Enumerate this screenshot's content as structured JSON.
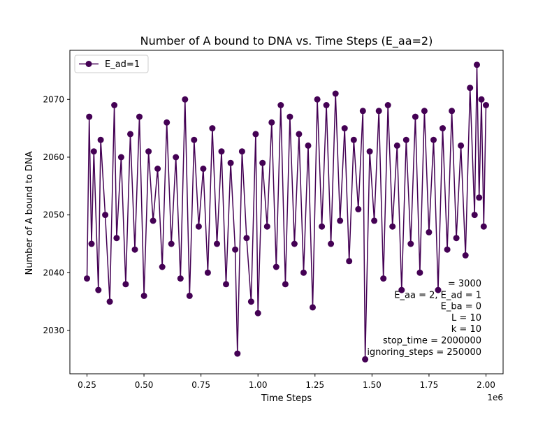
{
  "chart_data": {
    "type": "line",
    "title": "Number of A bound to DNA vs. Time Steps (E_aa=2)",
    "xlabel": "Time Steps",
    "ylabel": "Number of A bound to DNA",
    "x_offset_label": "1e6",
    "xlim": [
      0.175,
      2.075
    ],
    "ylim": [
      2022.5,
      2078.5
    ],
    "x_ticks": [
      0.25,
      0.5,
      0.75,
      1.0,
      1.25,
      1.5,
      1.75,
      2.0
    ],
    "x_tick_labels": [
      "0.25",
      "0.50",
      "0.75",
      "1.00",
      "1.25",
      "1.50",
      "1.75",
      "2.00"
    ],
    "y_ticks": [
      2030,
      2040,
      2050,
      2060,
      2070
    ],
    "y_tick_labels": [
      "2030",
      "2040",
      "2050",
      "2060",
      "2070"
    ],
    "grid": false,
    "legend_position": "top-left",
    "series": [
      {
        "name": "E_ad=1",
        "color": "#440154",
        "marker": "circle",
        "x": [
          0.25,
          0.26,
          0.27,
          0.28,
          0.3,
          0.31,
          0.33,
          0.35,
          0.37,
          0.38,
          0.4,
          0.42,
          0.44,
          0.46,
          0.48,
          0.5,
          0.52,
          0.54,
          0.56,
          0.58,
          0.6,
          0.62,
          0.64,
          0.66,
          0.68,
          0.7,
          0.72,
          0.74,
          0.76,
          0.78,
          0.8,
          0.82,
          0.84,
          0.86,
          0.88,
          0.9,
          0.91,
          0.93,
          0.95,
          0.97,
          0.99,
          1.0,
          1.02,
          1.04,
          1.06,
          1.08,
          1.1,
          1.12,
          1.14,
          1.16,
          1.18,
          1.2,
          1.22,
          1.24,
          1.26,
          1.28,
          1.3,
          1.32,
          1.34,
          1.36,
          1.38,
          1.4,
          1.42,
          1.44,
          1.46,
          1.47,
          1.49,
          1.51,
          1.53,
          1.55,
          1.57,
          1.59,
          1.61,
          1.63,
          1.65,
          1.67,
          1.69,
          1.71,
          1.73,
          1.75,
          1.77,
          1.79,
          1.81,
          1.83,
          1.85,
          1.87,
          1.89,
          1.91,
          1.93,
          1.95,
          1.96,
          1.97,
          1.98,
          1.99,
          2.0
        ],
        "y": [
          2039,
          2067,
          2045,
          2061,
          2037,
          2063,
          2050,
          2035,
          2069,
          2046,
          2060,
          2038,
          2064,
          2044,
          2067,
          2036,
          2061,
          2049,
          2058,
          2041,
          2066,
          2045,
          2060,
          2039,
          2070,
          2036,
          2063,
          2048,
          2058,
          2040,
          2065,
          2045,
          2061,
          2038,
          2059,
          2044,
          2026,
          2061,
          2046,
          2035,
          2064,
          2033,
          2059,
          2048,
          2066,
          2041,
          2069,
          2038,
          2067,
          2045,
          2064,
          2040,
          2062,
          2034,
          2070,
          2048,
          2069,
          2045,
          2071,
          2049,
          2065,
          2042,
          2063,
          2051,
          2068,
          2025,
          2061,
          2049,
          2068,
          2039,
          2069,
          2048,
          2062,
          2037,
          2063,
          2045,
          2067,
          2040,
          2068,
          2047,
          2063,
          2037,
          2065,
          2044,
          2068,
          2046,
          2062,
          2043,
          2072,
          2050,
          2076,
          2053,
          2070,
          2048,
          2069
        ]
      }
    ],
    "annotation_lines": [
      "= 3000",
      "E_aa = 2, E_ad = 1",
      "E_ba = 0",
      "L = 10",
      "k = 10",
      "stop_time = 2000000",
      "ignoring_steps = 250000"
    ]
  }
}
